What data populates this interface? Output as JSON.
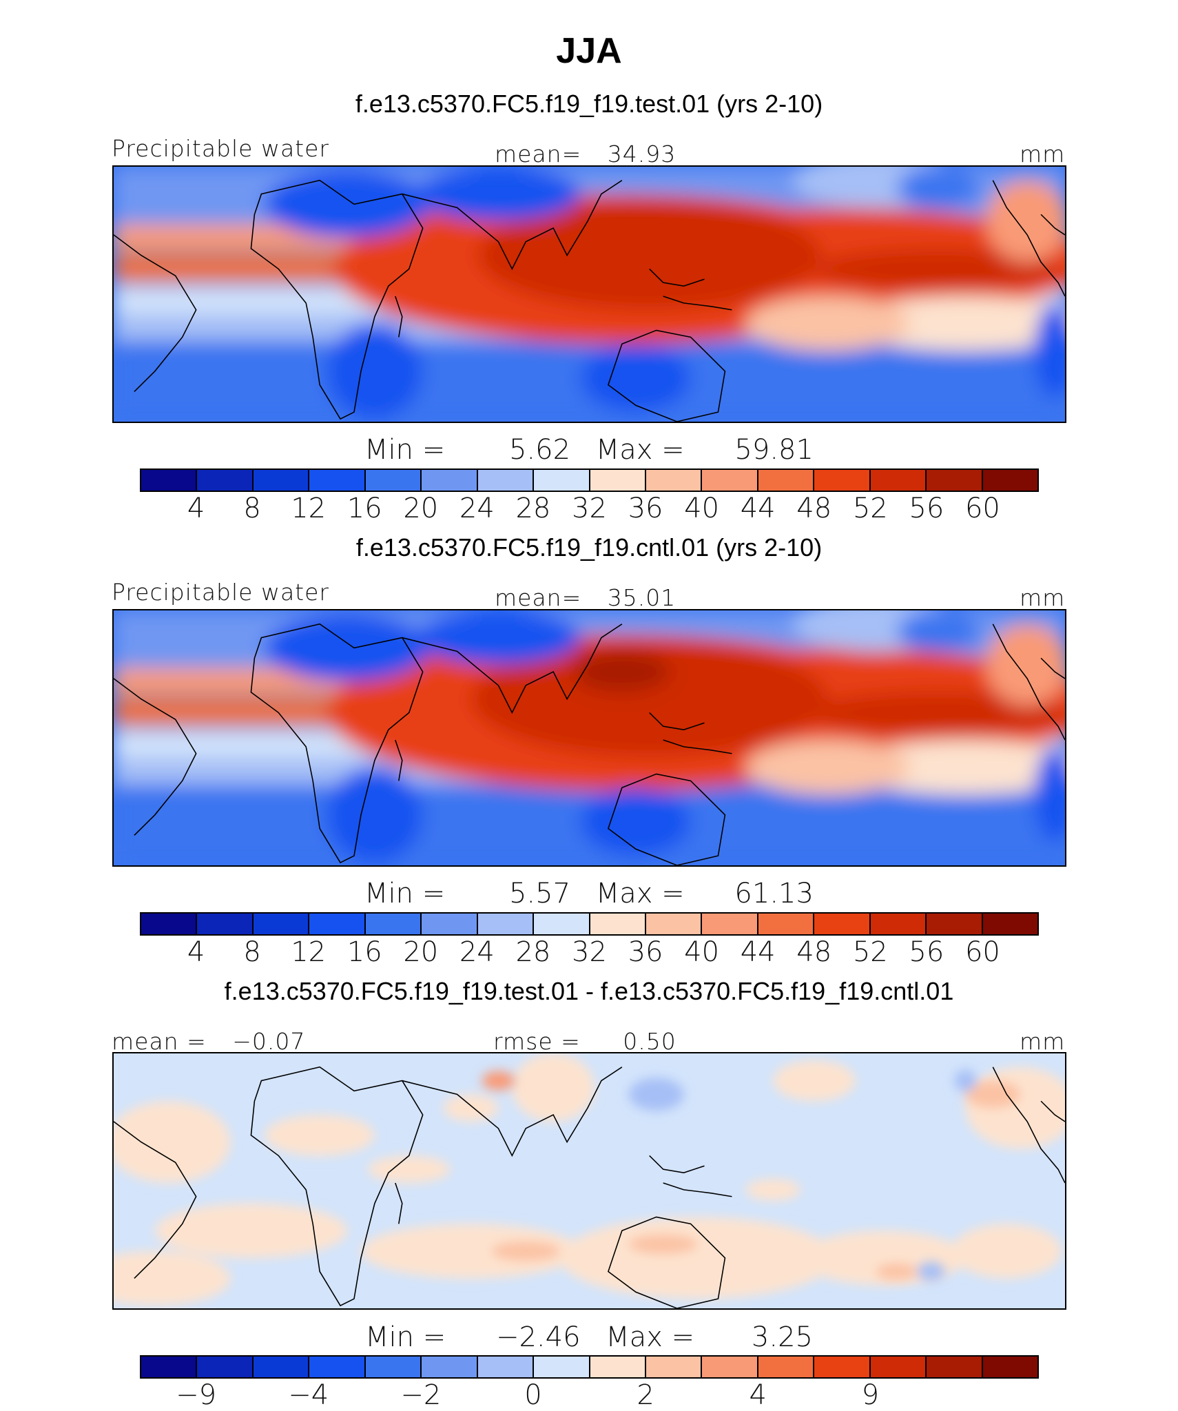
{
  "title": "JJA",
  "palette_abs": [
    "#08088c",
    "#0a25b8",
    "#0a3ad6",
    "#1552f0",
    "#3a75f0",
    "#6f97f2",
    "#a6bff6",
    "#d3e4fb",
    "#fde3cf",
    "#fbc2a4",
    "#f99a76",
    "#f2703f",
    "#e84112",
    "#cf2b06",
    "#a81c04",
    "#7e0a02"
  ],
  "palette_diff": [
    "#08088c",
    "#0a25b8",
    "#0a3ad6",
    "#1552f0",
    "#3a75f0",
    "#6f97f2",
    "#a6bff6",
    "#d3e4fb",
    "#fde3cf",
    "#fbc2a4",
    "#f99a76",
    "#f2703f",
    "#e84112",
    "#cf2b06",
    "#a81c04",
    "#7e0a02"
  ],
  "panels": [
    {
      "case_title": "f.e13.c5370.FC5.f19_f19.test.01 (yrs 2-10)",
      "left_label": "Precipitable water",
      "center_label": "mean=",
      "center_value": "34.93",
      "units": "mm",
      "min_label": "Min  =",
      "min_value": "5.62",
      "max_label": "Max  =",
      "max_value": "59.81",
      "ticks": [
        "4",
        "8",
        "12",
        "16",
        "20",
        "24",
        "28",
        "32",
        "36",
        "40",
        "44",
        "48",
        "52",
        "56",
        "60"
      ]
    },
    {
      "case_title": "f.e13.c5370.FC5.f19_f19.cntl.01 (yrs 2-10)",
      "left_label": "Precipitable water",
      "center_label": "mean=",
      "center_value": "35.01",
      "units": "mm",
      "min_label": "Min  =",
      "min_value": "5.57",
      "max_label": "Max  =",
      "max_value": "61.13",
      "ticks": [
        "4",
        "8",
        "12",
        "16",
        "20",
        "24",
        "28",
        "32",
        "36",
        "40",
        "44",
        "48",
        "52",
        "56",
        "60"
      ]
    },
    {
      "case_title": "f.e13.c5370.FC5.f19_f19.test.01 - f.e13.c5370.FC5.f19_f19.cntl.01",
      "left_label": "mean =",
      "left_value": "−0.07",
      "center_label": "rmse =",
      "center_value": "0.50",
      "units": "mm",
      "min_label": "Min  =",
      "min_value": "−2.46",
      "max_label": "Max  =",
      "max_value": "3.25",
      "ticks": [
        "−9",
        "−4",
        "−2",
        "0",
        "2",
        "4",
        "9"
      ]
    }
  ],
  "chart_data": [
    {
      "type": "heatmap",
      "variable": "Precipitable water",
      "units": "mm",
      "mean": 34.93,
      "min": 5.62,
      "max": 59.81,
      "levels": [
        4,
        8,
        12,
        16,
        20,
        24,
        28,
        32,
        36,
        40,
        44,
        48,
        52,
        56,
        60
      ]
    },
    {
      "type": "heatmap",
      "variable": "Precipitable water",
      "units": "mm",
      "mean": 35.01,
      "min": 5.57,
      "max": 61.13,
      "levels": [
        4,
        8,
        12,
        16,
        20,
        24,
        28,
        32,
        36,
        40,
        44,
        48,
        52,
        56,
        60
      ]
    },
    {
      "type": "heatmap",
      "units": "mm",
      "mean": -0.07,
      "rmse": 0.5,
      "min": -2.46,
      "max": 3.25,
      "levels": [
        -9,
        -4,
        -2,
        0,
        2,
        4,
        9
      ]
    }
  ]
}
